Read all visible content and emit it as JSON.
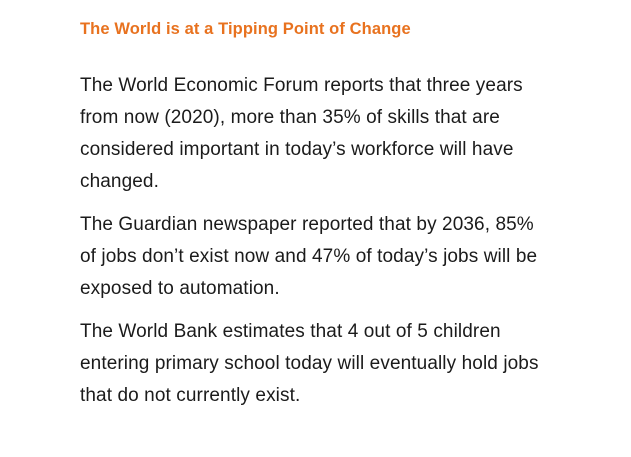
{
  "theme": {
    "background_color": "#ffffff",
    "heading_color": "#e8721f",
    "text_color": "#1b1b1b"
  },
  "slide": {
    "heading": "The World is at a Tipping Point of Change",
    "paragraphs": [
      {
        "lines": [
          "The World Economic Forum reports that three years",
          "from now (2020), more than 35% of skills that are",
          "considered important in today’s workforce will have",
          "changed."
        ]
      },
      {
        "lines": [
          "The Guardian newspaper reported that by 2036, 85%",
          "of jobs don’t exist now and 47% of today’s jobs will be",
          "exposed to automation."
        ]
      },
      {
        "lines": [
          "The World Bank estimates that 4 out of 5 children",
          "entering primary school today will eventually hold jobs",
          "that do not currently exist."
        ]
      }
    ]
  }
}
